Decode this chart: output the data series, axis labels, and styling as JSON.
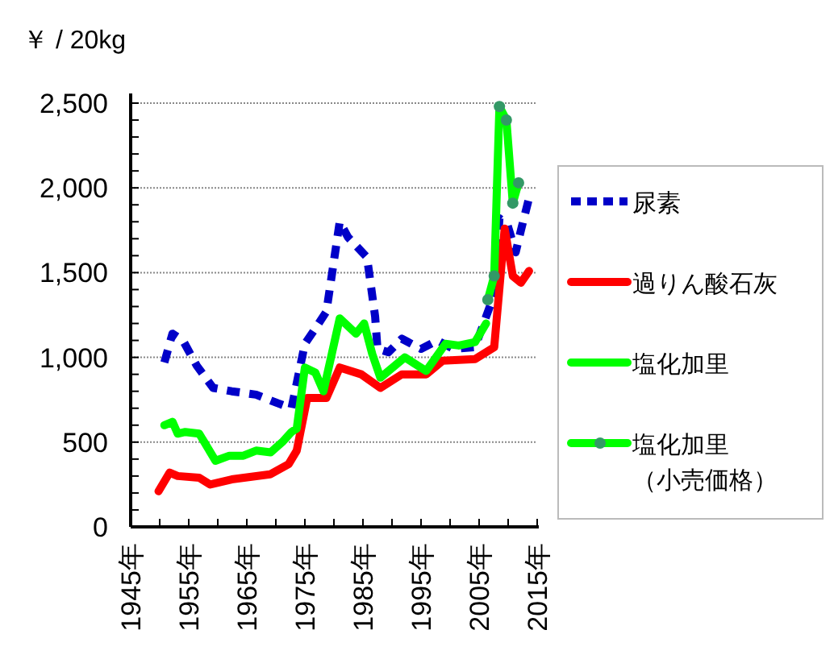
{
  "chart_data": {
    "type": "line",
    "ylabel": "￥ / 20kg",
    "xlim": [
      1945,
      2015
    ],
    "xticks": [
      {
        "value": 1945,
        "label": "1945年"
      },
      {
        "value": 1950,
        "label": null
      },
      {
        "value": 1955,
        "label": "1955年"
      },
      {
        "value": 1960,
        "label": null
      },
      {
        "value": 1965,
        "label": "1965年"
      },
      {
        "value": 1970,
        "label": null
      },
      {
        "value": 1975,
        "label": "1975年"
      },
      {
        "value": 1980,
        "label": null
      },
      {
        "value": 1985,
        "label": "1985年"
      },
      {
        "value": 1990,
        "label": null
      },
      {
        "value": 1995,
        "label": "1995年"
      },
      {
        "value": 2000,
        "label": null
      },
      {
        "value": 2005,
        "label": "2005年"
      },
      {
        "value": 2010,
        "label": null
      },
      {
        "value": 2015,
        "label": "2015年"
      }
    ],
    "ylim": [
      0,
      2500
    ],
    "yticks": [
      0,
      {
        "value": 100,
        "label": null
      },
      {
        "value": 200,
        "label": null
      },
      {
        "value": 300,
        "label": null
      },
      {
        "value": 400,
        "label": null
      },
      500,
      {
        "value": 600,
        "label": null
      },
      {
        "value": 700,
        "label": null
      },
      {
        "value": 800,
        "label": null
      },
      {
        "value": 900,
        "label": null
      },
      {
        "value": 1000,
        "label": "1,000"
      },
      {
        "value": 1100,
        "label": null
      },
      {
        "value": 1200,
        "label": null
      },
      {
        "value": 1300,
        "label": null
      },
      {
        "value": 1400,
        "label": null
      },
      {
        "value": 1500,
        "label": "1,500"
      },
      {
        "value": 1600,
        "label": null
      },
      {
        "value": 1700,
        "label": null
      },
      {
        "value": 1800,
        "label": null
      },
      {
        "value": 1900,
        "label": null
      },
      {
        "value": 2000,
        "label": "2,000"
      },
      {
        "value": 2100,
        "label": null
      },
      {
        "value": 2200,
        "label": null
      },
      {
        "value": 2300,
        "label": null
      },
      {
        "value": 2400,
        "label": null
      },
      {
        "value": 2500,
        "label": "2,500"
      }
    ],
    "grid": "y",
    "legend": "right",
    "series": [
      {
        "name": "尿素",
        "color": "#0000c8",
        "line_style": "dashed",
        "x": [
          1950.8,
          1952.2,
          1954,
          1956.4,
          1959.2,
          1962.4,
          1966.6,
          1970.3,
          1972.7,
          1975,
          1976.8,
          1978.7,
          1981,
          1982.4,
          1985.7,
          1987.1,
          1987.5,
          1989.4,
          1991.7,
          1995,
          1997.8,
          2000.6,
          2004.3,
          2006.2,
          2007.6,
          2008.5,
          2009.9,
          2011.3,
          2012.2,
          2013.6
        ],
        "values": [
          970,
          1140,
          1100,
          950,
          820,
          800,
          780,
          730,
          700,
          1080,
          1170,
          1270,
          1800,
          1710,
          1590,
          1240,
          1050,
          1030,
          1110,
          1050,
          1100,
          1050,
          1060,
          1240,
          1370,
          1820,
          1780,
          1620,
          1750,
          1940
        ]
      },
      {
        "name": "過りん酸石灰",
        "color": "#ff0000",
        "x": [
          1949.8,
          1951.7,
          1953.1,
          1956.8,
          1958.7,
          1962.4,
          1969,
          1972.2,
          1973.6,
          1975.4,
          1978.7,
          1981,
          1984.7,
          1988,
          1991.7,
          1995.9,
          1998.7,
          2004.3,
          2007.6,
          2009.4,
          2010.8,
          2012.2,
          2013.6
        ],
        "values": [
          210,
          320,
          300,
          290,
          250,
          280,
          310,
          370,
          450,
          760,
          760,
          940,
          900,
          820,
          900,
          900,
          980,
          990,
          1060,
          1760,
          1480,
          1440,
          1510
        ]
      },
      {
        "name": "塩化加里",
        "color": "#00ff00",
        "x": [
          1950.8,
          1952.2,
          1953.1,
          1954.4,
          1956.8,
          1959.6,
          1962,
          1964.4,
          1966.6,
          1969.1,
          1971.1,
          1972.7,
          1973.6,
          1975,
          1976.8,
          1978.2,
          1981,
          1983.8,
          1985.2,
          1986.6,
          1988,
          1992.2,
          1995.9,
          1999.2,
          2001.5,
          2004.3,
          2006.2
        ],
        "values": [
          600,
          620,
          550,
          560,
          550,
          390,
          420,
          420,
          450,
          440,
          500,
          560,
          580,
          940,
          910,
          800,
          1230,
          1140,
          1200,
          1020,
          880,
          1000,
          920,
          1080,
          1070,
          1090,
          1200
        ]
      },
      {
        "name": "塩化加里（小売価格）",
        "color": "#00ff00",
        "marker": "circle",
        "colors": [
          "#339966",
          "#339966",
          "#339966",
          "#339966",
          "#339966",
          "#339966"
        ],
        "x": [
          2006.5,
          2007.6,
          2008.5,
          2009.7,
          2010.8,
          2011.8
        ],
        "values": [
          1340,
          1480,
          2480,
          2400,
          1910,
          2030
        ]
      }
    ]
  }
}
